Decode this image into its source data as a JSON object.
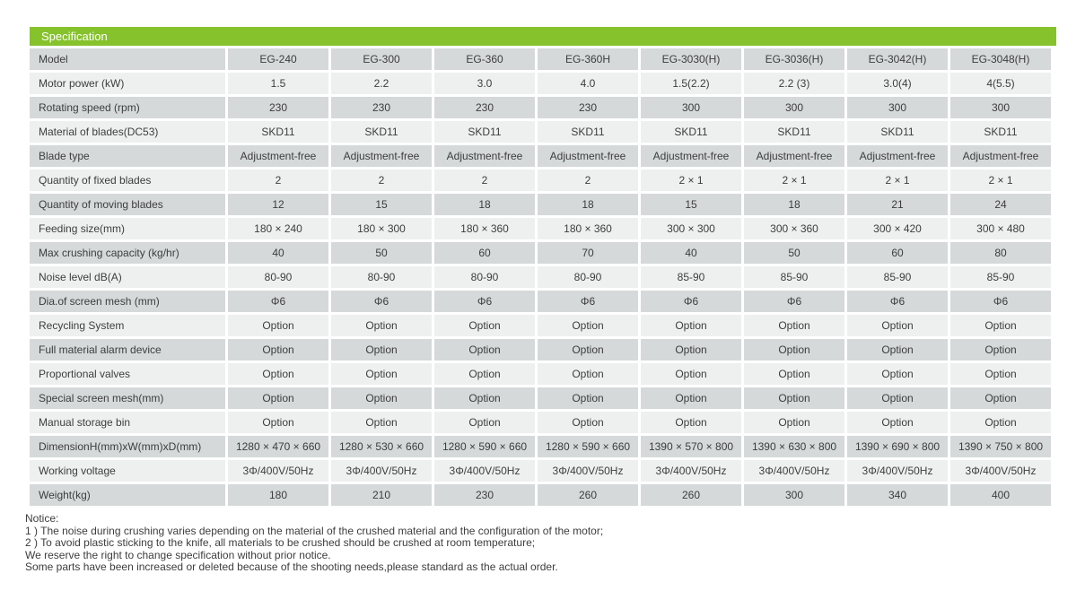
{
  "colors": {
    "header_green": "#86c22c",
    "row_dark": "#d5d9da",
    "row_light": "#eef0f0",
    "text": "#3d3d3d"
  },
  "table": {
    "title": "Specification",
    "rows": [
      {
        "label": "Model",
        "values": [
          "EG-240",
          "EG-300",
          "EG-360",
          "EG-360H",
          "EG-3030(H)",
          "EG-3036(H)",
          "EG-3042(H)",
          "EG-3048(H)"
        ]
      },
      {
        "label": "Motor power (kW)",
        "values": [
          "1.5",
          "2.2",
          "3.0",
          "4.0",
          "1.5(2.2)",
          "2.2 (3)",
          "3.0(4)",
          "4(5.5)"
        ]
      },
      {
        "label": "Rotating speed (rpm)",
        "values": [
          "230",
          "230",
          "230",
          "230",
          "300",
          "300",
          "300",
          "300"
        ]
      },
      {
        "label": "Material of blades(DC53)",
        "values": [
          "SKD11",
          "SKD11",
          "SKD11",
          "SKD11",
          "SKD11",
          "SKD11",
          "SKD11",
          "SKD11"
        ]
      },
      {
        "label": "Blade type",
        "values": [
          "Adjustment-free",
          "Adjustment-free",
          "Adjustment-free",
          "Adjustment-free",
          "Adjustment-free",
          "Adjustment-free",
          "Adjustment-free",
          "Adjustment-free"
        ]
      },
      {
        "label": "Quantity of fixed blades",
        "values": [
          "2",
          "2",
          "2",
          "2",
          "2 × 1",
          "2 × 1",
          "2 × 1",
          "2 × 1"
        ]
      },
      {
        "label": "Quantity of moving blades",
        "values": [
          "12",
          "15",
          "18",
          "18",
          "15",
          "18",
          "21",
          "24"
        ]
      },
      {
        "label": "Feeding size(mm)",
        "values": [
          "180 × 240",
          "180 × 300",
          "180 × 360",
          "180 × 360",
          "300 × 300",
          "300 × 360",
          "300 × 420",
          "300 × 480"
        ]
      },
      {
        "label": "Max crushing capacity (kg/hr)",
        "values": [
          "40",
          "50",
          "60",
          "70",
          "40",
          "50",
          "60",
          "80"
        ]
      },
      {
        "label": "Noise level dB(A)",
        "values": [
          "80-90",
          "80-90",
          "80-90",
          "80-90",
          "85-90",
          "85-90",
          "85-90",
          "85-90"
        ]
      },
      {
        "label": "Dia.of screen mesh (mm)",
        "values": [
          "Φ6",
          "Φ6",
          "Φ6",
          "Φ6",
          "Φ6",
          "Φ6",
          "Φ6",
          "Φ6"
        ]
      },
      {
        "label": "Recycling System",
        "values": [
          "Option",
          "Option",
          "Option",
          "Option",
          "Option",
          "Option",
          "Option",
          "Option"
        ]
      },
      {
        "label": "Full material alarm device",
        "values": [
          "Option",
          "Option",
          "Option",
          "Option",
          "Option",
          "Option",
          "Option",
          "Option"
        ]
      },
      {
        "label": "Proportional valves",
        "values": [
          "Option",
          "Option",
          "Option",
          "Option",
          "Option",
          "Option",
          "Option",
          "Option"
        ]
      },
      {
        "label": "Special screen mesh(mm)",
        "values": [
          "Option",
          "Option",
          "Option",
          "Option",
          "Option",
          "Option",
          "Option",
          "Option"
        ]
      },
      {
        "label": "Manual storage bin",
        "values": [
          "Option",
          "Option",
          "Option",
          "Option",
          "Option",
          "Option",
          "Option",
          "Option"
        ]
      },
      {
        "label": "DimensionH(mm)xW(mm)xD(mm)",
        "values": [
          "1280 × 470 × 660",
          "1280 × 530 × 660",
          "1280 × 590 × 660",
          "1280 × 590 × 660",
          "1390 × 570 × 800",
          "1390 × 630 × 800",
          "1390 × 690 × 800",
          "1390 × 750 × 800"
        ]
      },
      {
        "label": "Working voltage",
        "values": [
          "3Φ/400V/50Hz",
          "3Φ/400V/50Hz",
          "3Φ/400V/50Hz",
          "3Φ/400V/50Hz",
          "3Φ/400V/50Hz",
          "3Φ/400V/50Hz",
          "3Φ/400V/50Hz",
          "3Φ/400V/50Hz"
        ]
      },
      {
        "label": "Weight(kg)",
        "values": [
          "180",
          "210",
          "230",
          "260",
          "260",
          "300",
          "340",
          "400"
        ]
      }
    ]
  },
  "notice": {
    "title": "Notice:",
    "lines": [
      "1 )  The noise during crushing varies depending on the material of the crushed material and the configuration of the motor;",
      "2 )  To avoid plastic sticking to the knife, all materials to be crushed should be crushed at room temperature;",
      "We reserve the right to change specification without prior notice.",
      "Some parts have been increased or deleted because of the shooting needs,please standard as the actual order."
    ]
  }
}
